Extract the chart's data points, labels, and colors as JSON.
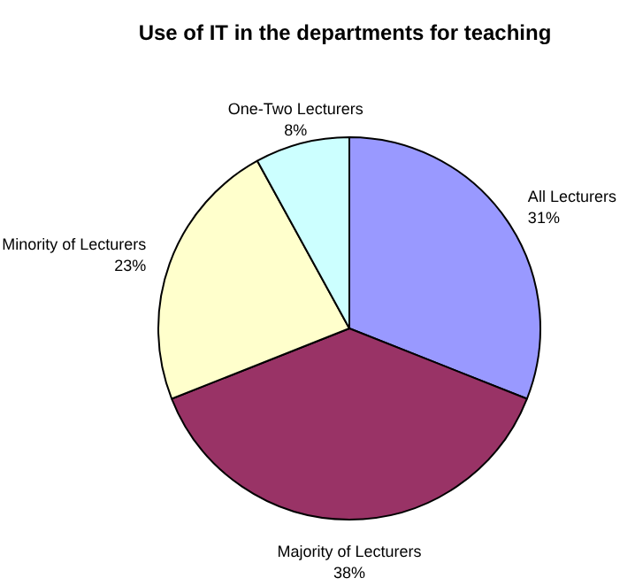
{
  "chart_data": {
    "type": "pie",
    "title": "Use of IT in the departments for teaching",
    "categories": [
      "All Lecturers",
      "Majority of Lecturers",
      "Minority of Lecturers",
      "One-Two Lecturers"
    ],
    "values": [
      31,
      38,
      23,
      8
    ],
    "colors": [
      "#9999ff",
      "#993366",
      "#ffffcc",
      "#ccffff"
    ],
    "value_labels": [
      "31%",
      "38%",
      "23%",
      "8%"
    ]
  }
}
